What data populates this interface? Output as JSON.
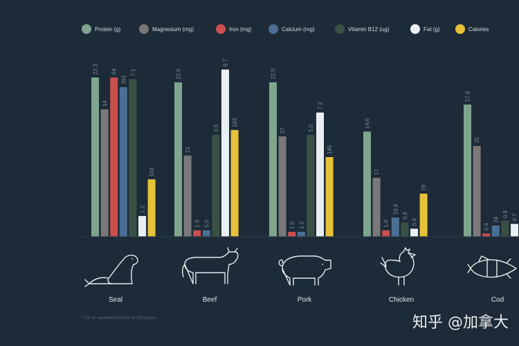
{
  "colors": {
    "background": "#1d2b38",
    "Protein (g)": "#7fa58f",
    "Magnesium (mg)": "#7a7878",
    "Iron (mg)": "#c9504e",
    "Calcium (mg)": "#4a6f93",
    "Vitamin B12 (ug)": "#3b5044",
    "Fat (g)": "#e9eff3",
    "Calories": "#e8c13a"
  },
  "chart_data": {
    "type": "bar",
    "categories": [
      "Seal",
      "Beef",
      "Pork",
      "Chicken",
      "Cod"
    ],
    "series": [
      {
        "name": "Protein (g)",
        "values": [
          22.3,
          22.0,
          22.0,
          14.6,
          17.8
        ],
        "labels": [
          "22.3",
          "22.0",
          "22.0",
          "14.6",
          "17.8"
        ]
      },
      {
        "name": "Magnesium (mg)",
        "values": [
          14,
          21,
          27,
          17,
          25
        ],
        "labels": [
          "14",
          "21",
          "27",
          "17",
          "25"
        ]
      },
      {
        "name": "Iron (mg)",
        "values": [
          64,
          1.9,
          1.0,
          1.8,
          0.4
        ],
        "labels": [
          "64",
          "1.9",
          "1.0",
          "1.8",
          "0.4"
        ]
      },
      {
        "name": "Calcium (mg)",
        "values": [
          391,
          5.0,
          1.2,
          19.4,
          24
        ],
        "labels": [
          "391",
          "5.0",
          "1.2",
          "19.4",
          "24"
        ]
      },
      {
        "name": "Vitamin B12 (ug)",
        "values": [
          7.1,
          3.5,
          5.0,
          0.8,
          0.8
        ],
        "labels": [
          "7.1",
          "3.5",
          "5.0",
          "0.8",
          "0.8"
        ]
      },
      {
        "name": "Fat (g)",
        "values": [
          1.2,
          9.7,
          7.2,
          0.4,
          0.7
        ],
        "labels": [
          "1.2",
          "9.7",
          "7.2",
          "0.4",
          "0.7"
        ]
      },
      {
        "name": "Calories",
        "values": [
          104,
          193,
          145,
          79,
          null
        ],
        "labels": [
          "104",
          "193",
          "145",
          "79",
          ""
        ]
      }
    ],
    "bar_levels": [
      [
        1.0,
        0.8,
        1.0,
        0.94,
        0.99,
        0.13,
        0.36
      ],
      [
        0.97,
        0.51,
        0.04,
        0.04,
        0.64,
        1.05,
        0.67
      ],
      [
        0.97,
        0.63,
        0.03,
        0.03,
        0.64,
        0.78,
        0.5
      ],
      [
        0.66,
        0.37,
        0.04,
        0.12,
        0.09,
        0.05,
        0.27
      ],
      [
        0.83,
        0.57,
        0.02,
        0.07,
        0.1,
        0.08,
        0
      ]
    ],
    "legend_position": "top",
    "grid": false
  },
  "icons": [
    "seal-icon",
    "cow-icon",
    "pig-icon",
    "chicken-icon",
    "fish-icon"
  ],
  "footnote": "* For an equivalent portion of 100 grams",
  "watermark": "知乎 @加拿大"
}
